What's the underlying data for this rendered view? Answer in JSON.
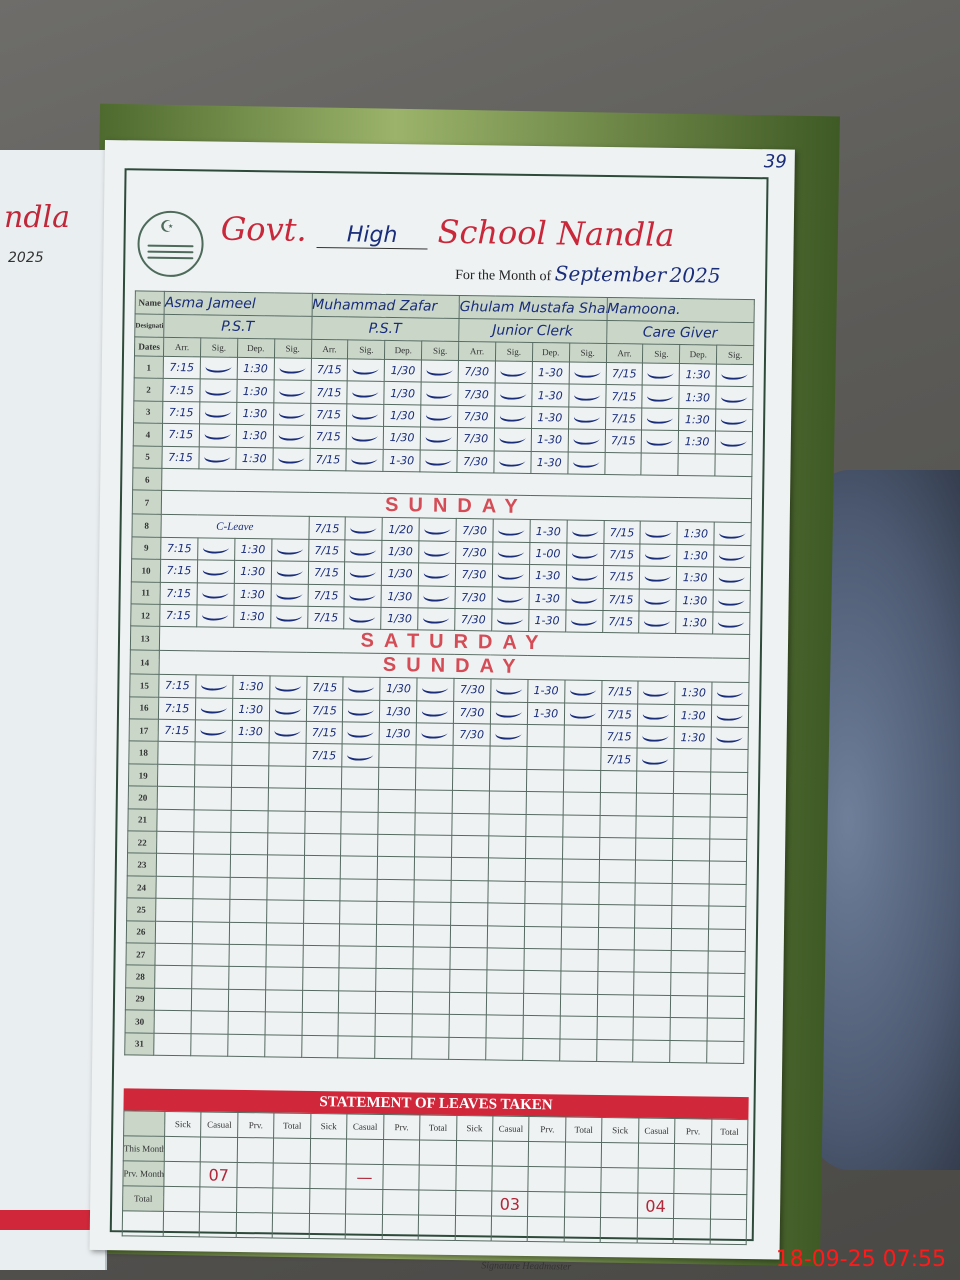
{
  "left_page": {
    "title_fragment": "ndla",
    "year": "2025"
  },
  "page_number": "39",
  "header": {
    "govt": "Govt.",
    "school_type": "High",
    "school": "School Nandla",
    "month_label": "For the Month of",
    "month_value": "September",
    "year": "2025"
  },
  "labels": {
    "name": "Name",
    "designation": "Designation",
    "dates": "Dates",
    "arr": "Arr.",
    "sig": "Sig.",
    "dep": "Dep."
  },
  "staff": [
    {
      "name": "Asma Jameel",
      "designation": "P.S.T"
    },
    {
      "name": "Muhammad Zafar",
      "designation": "P.S.T"
    },
    {
      "name": "Ghulam Mustafa Shahid",
      "designation": "Junior Clerk"
    },
    {
      "name": "Mamoona.",
      "designation": "Care Giver"
    }
  ],
  "days": [
    {
      "d": "1",
      "e": [
        [
          "7:15",
          true,
          "1:30",
          true
        ],
        [
          "7/15",
          true,
          "1/30",
          true
        ],
        [
          "7/30",
          true,
          "1-30",
          true
        ],
        [
          "7/15",
          true,
          "1:30",
          true
        ]
      ]
    },
    {
      "d": "2",
      "e": [
        [
          "7:15",
          true,
          "1:30",
          true
        ],
        [
          "7/15",
          true,
          "1/30",
          true
        ],
        [
          "7/30",
          true,
          "1-30",
          true
        ],
        [
          "7/15",
          true,
          "1:30",
          true
        ]
      ]
    },
    {
      "d": "3",
      "e": [
        [
          "7:15",
          true,
          "1:30",
          true
        ],
        [
          "7/15",
          true,
          "1/30",
          true
        ],
        [
          "7/30",
          true,
          "1-30",
          true
        ],
        [
          "7/15",
          true,
          "1:30",
          true
        ]
      ]
    },
    {
      "d": "4",
      "e": [
        [
          "7:15",
          true,
          "1:30",
          true
        ],
        [
          "7/15",
          true,
          "1/30",
          true
        ],
        [
          "7/30",
          true,
          "1-30",
          true
        ],
        [
          "7/15",
          true,
          "1:30",
          true
        ]
      ]
    },
    {
      "d": "5",
      "e": [
        [
          "7:15",
          true,
          "1:30",
          true
        ],
        [
          "7/15",
          true,
          "1-30",
          true
        ],
        [
          "7/30",
          true,
          "1-30",
          true
        ],
        null
      ]
    },
    {
      "d": "6",
      "holiday": ""
    },
    {
      "d": "7",
      "holiday": "SUNDAY"
    },
    {
      "d": "8",
      "e": [
        "C-Leave",
        [
          "7/15",
          true,
          "1/20",
          true
        ],
        [
          "7/30",
          true,
          "1-30",
          true
        ],
        [
          "7/15",
          true,
          "1:30",
          true
        ]
      ]
    },
    {
      "d": "9",
      "e": [
        [
          "7:15",
          true,
          "1:30",
          true
        ],
        [
          "7/15",
          true,
          "1/30",
          true
        ],
        [
          "7/30",
          true,
          "1-00",
          true
        ],
        [
          "7/15",
          true,
          "1:30",
          true
        ]
      ]
    },
    {
      "d": "10",
      "e": [
        [
          "7:15",
          true,
          "1:30",
          true
        ],
        [
          "7/15",
          true,
          "1/30",
          true
        ],
        [
          "7/30",
          true,
          "1-30",
          true
        ],
        [
          "7/15",
          true,
          "1:30",
          true
        ]
      ]
    },
    {
      "d": "11",
      "e": [
        [
          "7:15",
          true,
          "1:30",
          true
        ],
        [
          "7/15",
          true,
          "1/30",
          true
        ],
        [
          "7/30",
          true,
          "1-30",
          true
        ],
        [
          "7/15",
          true,
          "1:30",
          true
        ]
      ]
    },
    {
      "d": "12",
      "e": [
        [
          "7:15",
          true,
          "1:30",
          true
        ],
        [
          "7/15",
          true,
          "1/30",
          true
        ],
        [
          "7/30",
          true,
          "1-30",
          true
        ],
        [
          "7/15",
          true,
          "1:30",
          true
        ]
      ]
    },
    {
      "d": "13",
      "holiday": "SATURDAY"
    },
    {
      "d": "14",
      "holiday": "SUNDAY"
    },
    {
      "d": "15",
      "e": [
        [
          "7:15",
          true,
          "1:30",
          true
        ],
        [
          "7/15",
          true,
          "1/30",
          true
        ],
        [
          "7/30",
          true,
          "1-30",
          true
        ],
        [
          "7/15",
          true,
          "1:30",
          true
        ]
      ]
    },
    {
      "d": "16",
      "e": [
        [
          "7:15",
          true,
          "1:30",
          true
        ],
        [
          "7/15",
          true,
          "1/30",
          true
        ],
        [
          "7/30",
          true,
          "1-30",
          true
        ],
        [
          "7/15",
          true,
          "1:30",
          true
        ]
      ]
    },
    {
      "d": "17",
      "e": [
        [
          "7:15",
          true,
          "1:30",
          true
        ],
        [
          "7/15",
          true,
          "1/30",
          true
        ],
        [
          "7/30",
          true,
          "",
          false
        ],
        [
          "7/15",
          true,
          "1:30",
          true
        ]
      ]
    },
    {
      "d": "18",
      "e": [
        null,
        [
          "7/15",
          true,
          "",
          false
        ],
        null,
        [
          "7/15",
          true,
          "",
          false
        ]
      ]
    },
    {
      "d": "19"
    },
    {
      "d": "20"
    },
    {
      "d": "21"
    },
    {
      "d": "22"
    },
    {
      "d": "23"
    },
    {
      "d": "24"
    },
    {
      "d": "25"
    },
    {
      "d": "26"
    },
    {
      "d": "27"
    },
    {
      "d": "28"
    },
    {
      "d": "29"
    },
    {
      "d": "30"
    },
    {
      "d": "31"
    }
  ],
  "statement": {
    "title": "STATEMENT OF LEAVES TAKEN",
    "columns": [
      "Sick",
      "Casual",
      "Prv.",
      "Total"
    ],
    "rows": [
      {
        "label": "This Month",
        "values": [
          "",
          "",
          "",
          "",
          "",
          "",
          "",
          "",
          "",
          "",
          "",
          "",
          "",
          "",
          "",
          ""
        ]
      },
      {
        "label": "Prv. Month",
        "values": [
          "",
          "07",
          "",
          "",
          "",
          "—",
          "",
          "",
          "",
          "",
          "",
          "",
          "",
          "",
          "",
          ""
        ]
      },
      {
        "label": "Total",
        "values": [
          "",
          "",
          "",
          "",
          "",
          "",
          "",
          "",
          "",
          "03",
          "",
          "",
          "",
          "04",
          "",
          ""
        ]
      }
    ],
    "signature_label": "Signature Headmaster"
  },
  "timestamp": "18-09-25  07:55",
  "colors": {
    "accent_red": "#d0283a",
    "ink_blue": "#1a2d7a",
    "header_green": "#c9d6c8"
  }
}
